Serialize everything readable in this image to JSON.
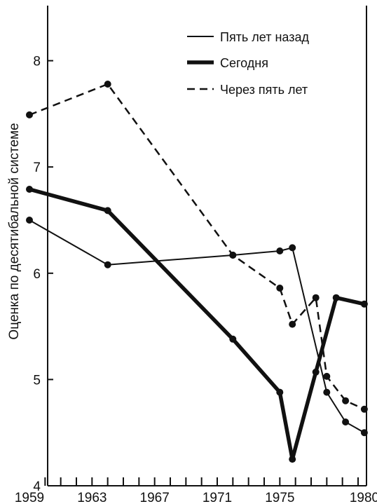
{
  "chart_data": {
    "type": "line",
    "title": "",
    "xlabel": "",
    "ylabel": "Оценка по десятибальной системе",
    "xlim": [
      1959,
      1980
    ],
    "ylim": [
      4,
      8.5
    ],
    "x_tick_labels": [
      "1959",
      "1963",
      "1967",
      "1971",
      "1975",
      "1980"
    ],
    "y_tick_labels": [
      "4",
      "5",
      "6",
      "7",
      "8"
    ],
    "legend_position": "top-right",
    "series": [
      {
        "name": "Пять лет назад",
        "style": "thin",
        "points": [
          [
            1959,
            6.5
          ],
          [
            1964,
            6.08
          ],
          [
            1972,
            6.17
          ],
          [
            1975,
            6.21
          ],
          [
            1975.8,
            6.24
          ],
          [
            1978,
            4.88
          ],
          [
            1979.2,
            4.6
          ],
          [
            1980.4,
            4.5
          ]
        ]
      },
      {
        "name": "Сегодня",
        "style": "thick",
        "points": [
          [
            1959,
            6.79
          ],
          [
            1964,
            6.59
          ],
          [
            1972,
            5.38
          ],
          [
            1975,
            4.88
          ],
          [
            1975.8,
            4.25
          ],
          [
            1977.3,
            5.07
          ],
          [
            1978.6,
            5.77
          ],
          [
            1980.4,
            5.71
          ]
        ]
      },
      {
        "name": "Через пять лет",
        "style": "dashed",
        "points": [
          [
            1959,
            7.49
          ],
          [
            1964,
            7.78
          ],
          [
            1972,
            6.17
          ],
          [
            1975,
            5.86
          ],
          [
            1975.8,
            5.52
          ],
          [
            1977.3,
            5.77
          ],
          [
            1978,
            5.03
          ],
          [
            1979.2,
            4.8
          ],
          [
            1980.4,
            4.72
          ]
        ]
      }
    ]
  }
}
